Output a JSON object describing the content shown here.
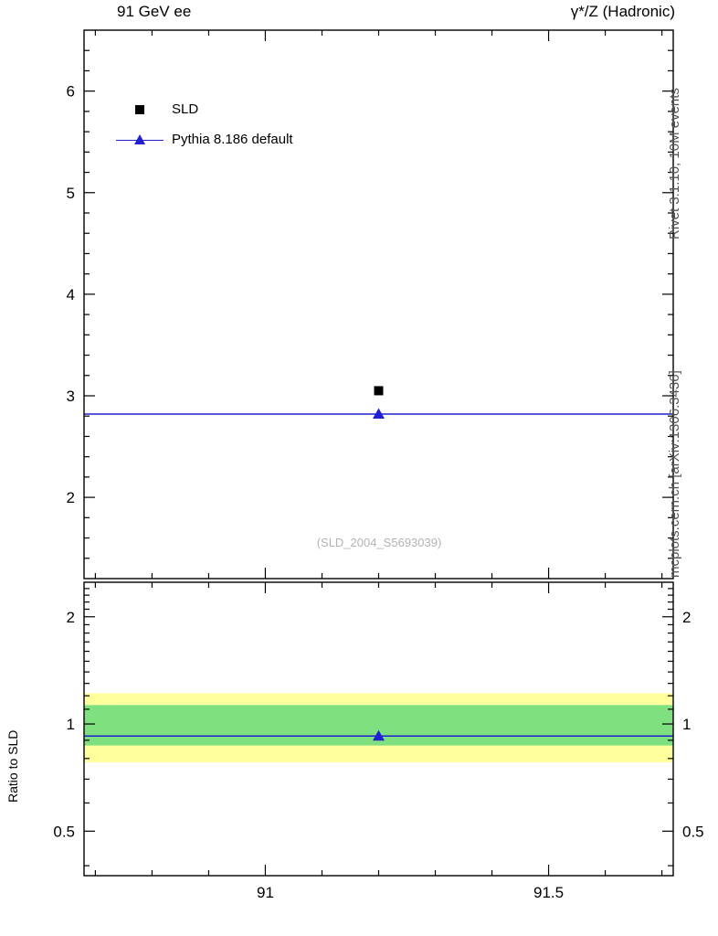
{
  "header": {
    "left": "91 GeV ee",
    "right": "γ*/Z (Hadronic)"
  },
  "watermarks": {
    "right_top": "Rivet 3.1.10,  10M events",
    "right_bottom": "mcplots.cern.ch [arXiv:1306.3436]",
    "analysis": "(SLD_2004_S5693039)"
  },
  "ratio_label": "Ratio to SLD",
  "legend": [
    {
      "label": "SLD",
      "marker": "black-square"
    },
    {
      "label": "Pythia 8.186 default",
      "marker": "blue-line-triangle"
    }
  ],
  "colors": {
    "data": "#000000",
    "mc_blue": "#2020d0",
    "band_outer": "#ffff9e",
    "band_inner": "#7fe07f"
  },
  "chart_data": {
    "type": "scatter",
    "title_left": "91 GeV ee",
    "title_right": "γ*/Z (Hadronic)",
    "xlim": [
      90.68,
      91.72
    ],
    "x_major_ticks": [
      91,
      91.5
    ],
    "x_tick_labels": [
      "91",
      "91.5"
    ],
    "x_minor_step": 0.1,
    "main_panel": {
      "ylim": [
        1.2,
        6.6
      ],
      "y_major_ticks": [
        2,
        3,
        4,
        5,
        6
      ],
      "y_minor_step": 0.2,
      "series": [
        {
          "name": "SLD",
          "x": 91.2,
          "y": 3.05,
          "marker": "square",
          "line": false,
          "color": "#000000"
        },
        {
          "name": "Pythia 8.186 default",
          "x": 91.2,
          "y": 2.82,
          "marker": "triangle",
          "line": true,
          "color": "#2020d0"
        }
      ]
    },
    "ratio_panel": {
      "scale": "log",
      "ylim": [
        0.375,
        2.5
      ],
      "y_major_ticks": [
        0.5,
        1,
        2
      ],
      "y_tick_labels": [
        "0.5",
        "1",
        "2"
      ],
      "y_minor_step": 0.1,
      "bands": [
        {
          "name": "uncertainty-band-outer",
          "lo": 0.78,
          "hi": 1.22,
          "color": "#ffff9e"
        },
        {
          "name": "uncertainty-band-inner",
          "lo": 0.87,
          "hi": 1.13,
          "color": "#7fe07f"
        }
      ],
      "series": [
        {
          "name": "Pythia 8.186 default",
          "x": 91.2,
          "y": 0.925,
          "marker": "triangle",
          "line": true,
          "color": "#2020d0"
        }
      ]
    }
  }
}
